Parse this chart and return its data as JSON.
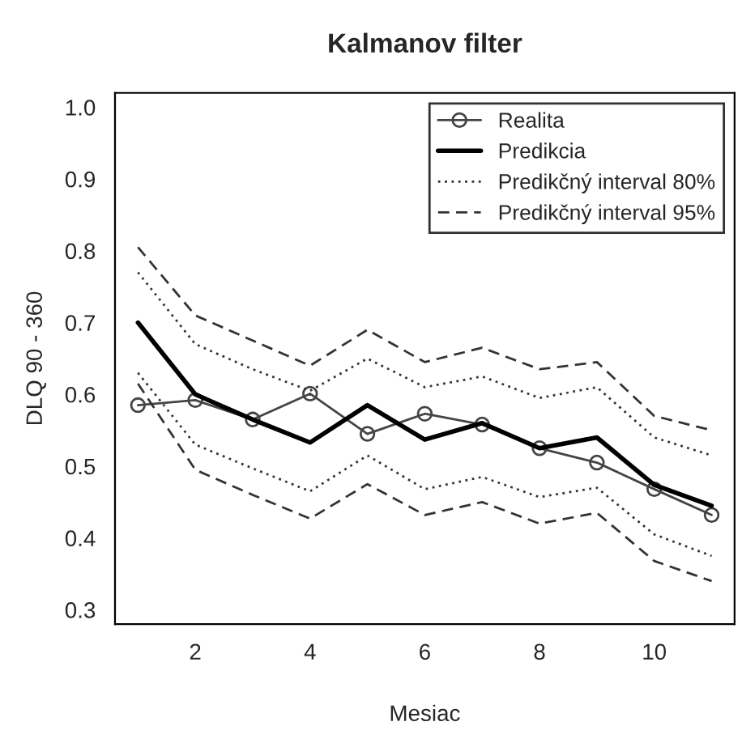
{
  "chart_data": {
    "type": "line",
    "title": "Kalmanov filter",
    "xlabel": "Mesiac",
    "ylabel": "DLQ 90 - 360",
    "x": [
      1,
      2,
      3,
      4,
      5,
      6,
      7,
      8,
      9,
      10,
      11
    ],
    "xlim": [
      0.6,
      11.4
    ],
    "ylim": [
      0.28,
      1.02
    ],
    "xticks": [
      2,
      4,
      6,
      8,
      10
    ],
    "yticks": [
      0.3,
      0.4,
      0.5,
      0.6,
      0.7,
      0.8,
      0.9,
      {
        "value": 1.0,
        "label": "1.0"
      }
    ],
    "grid": false,
    "legend": "top right",
    "series": [
      {
        "name": "Realita",
        "color": "#444444",
        "marker": "circle",
        "line_style": "solid",
        "values": [
          0.585,
          0.592,
          0.565,
          0.601,
          0.545,
          0.573,
          0.558,
          0.525,
          0.505,
          0.468,
          0.432
        ]
      },
      {
        "name": "Predikcia",
        "color": "#000000",
        "line_style": "solid",
        "values": [
          0.7,
          0.6,
          0.565,
          0.533,
          0.585,
          0.537,
          0.56,
          0.525,
          0.54,
          0.474,
          0.445
        ]
      },
      {
        "name": "Predikčný interval 80%",
        "color": "#333333",
        "line_style": "dotted",
        "values": [
          0.77,
          0.67,
          0.635,
          0.605,
          0.65,
          0.61,
          0.625,
          0.595,
          0.61,
          0.54,
          0.515
        ]
      },
      {
        "name": "Predikčný interval 95%",
        "color": "#333333",
        "line_style": "dashed",
        "values": [
          0.805,
          0.71,
          0.675,
          0.64,
          0.69,
          0.645,
          0.665,
          0.635,
          0.645,
          0.57,
          0.55
        ]
      },
      {
        "color": "#333333",
        "line_style": "dotted",
        "values": [
          0.63,
          0.53,
          0.497,
          0.465,
          0.515,
          0.468,
          0.485,
          0.457,
          0.47,
          0.405,
          0.375
        ]
      },
      {
        "color": "#333333",
        "line_style": "dashed",
        "values": [
          0.615,
          0.495,
          0.46,
          0.427,
          0.475,
          0.432,
          0.45,
          0.42,
          0.435,
          0.368,
          0.34
        ]
      }
    ]
  }
}
